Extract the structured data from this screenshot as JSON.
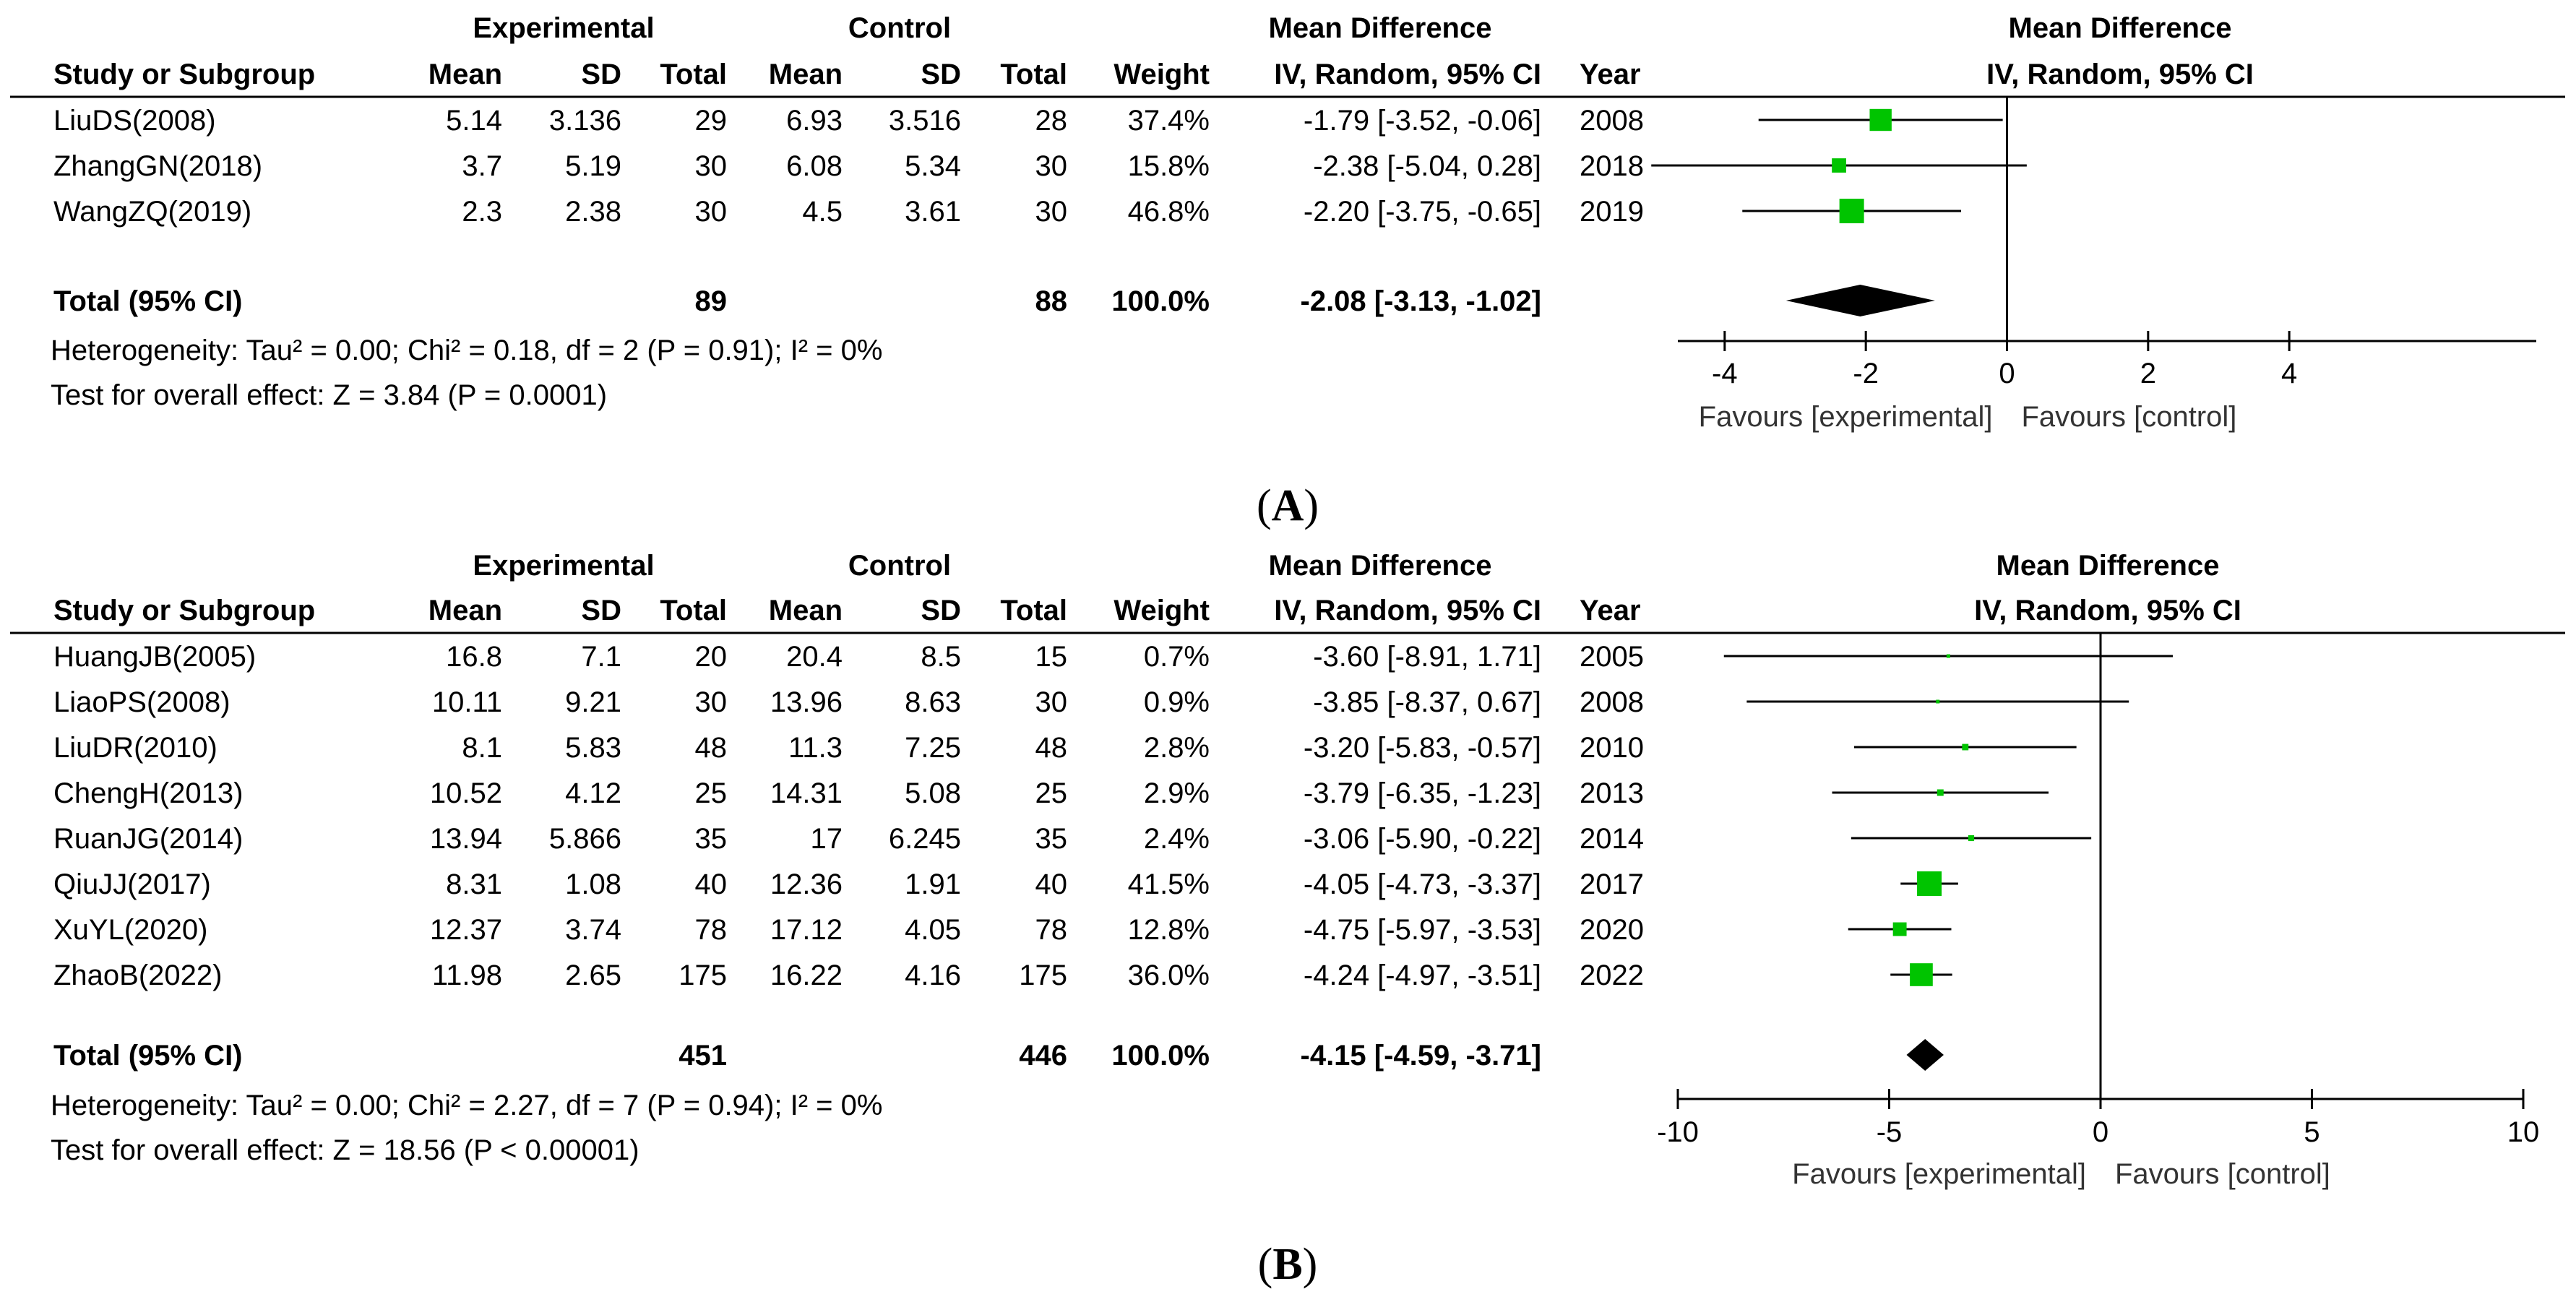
{
  "chart_data": [
    {
      "type": "forest",
      "panel_label": "A",
      "col_headers": {
        "experimental": "Experimental",
        "control": "Control",
        "md_group": "Mean Difference",
        "study": "Study or Subgroup",
        "mean_e": "Mean",
        "sd_e": "SD",
        "total_e": "Total",
        "mean_c": "Mean",
        "sd_c": "SD",
        "total_c": "Total",
        "weight": "Weight",
        "ci": "IV, Random, 95% CI",
        "year": "Year"
      },
      "plot_title": "Mean Difference",
      "plot_subtitle": "IV, Random, 95% CI",
      "studies": [
        {
          "name": "LiuDS(2008)",
          "mean_e": "5.14",
          "sd_e": "3.136",
          "n_e": "29",
          "mean_c": "6.93",
          "sd_c": "3.516",
          "n_c": "28",
          "weight": "37.4%",
          "ci_text": "-1.79 [-3.52, -0.06]",
          "year": "2008",
          "md": -1.79,
          "lo": -3.52,
          "hi": -0.06,
          "w": 37.4
        },
        {
          "name": "ZhangGN(2018)",
          "mean_e": "3.7",
          "sd_e": "5.19",
          "n_e": "30",
          "mean_c": "6.08",
          "sd_c": "5.34",
          "n_c": "30",
          "weight": "15.8%",
          "ci_text": "-2.38 [-5.04, 0.28]",
          "year": "2018",
          "md": -2.38,
          "lo": -5.04,
          "hi": 0.28,
          "w": 15.8
        },
        {
          "name": "WangZQ(2019)",
          "mean_e": "2.3",
          "sd_e": "2.38",
          "n_e": "30",
          "mean_c": "4.5",
          "sd_c": "3.61",
          "n_c": "30",
          "weight": "46.8%",
          "ci_text": "-2.20 [-3.75, -0.65]",
          "year": "2019",
          "md": -2.2,
          "lo": -3.75,
          "hi": -0.65,
          "w": 46.8
        }
      ],
      "total": {
        "label": "Total (95% CI)",
        "n_e": "89",
        "n_c": "88",
        "weight": "100.0%",
        "ci_text": "-2.08 [-3.13, -1.02]",
        "md": -2.08,
        "lo": -3.13,
        "hi": -1.02
      },
      "heterogeneity": "Heterogeneity: Tau² = 0.00; Chi² = 0.18, df = 2 (P = 0.91); I² = 0%",
      "overall_effect": "Test for overall effect: Z = 3.84 (P = 0.0001)",
      "xlim": [
        -4.5,
        7.5
      ],
      "xticks": [
        -4,
        -2,
        0,
        2,
        4
      ],
      "tick_labels": [
        "-4",
        "-2",
        "0",
        "2",
        "4"
      ],
      "favours_left": "Favours [experimental]",
      "favours_right": "Favours [control]"
    },
    {
      "type": "forest",
      "panel_label": "B",
      "col_headers": {
        "experimental": "Experimental",
        "control": "Control",
        "md_group": "Mean Difference",
        "study": "Study or Subgroup",
        "mean_e": "Mean",
        "sd_e": "SD",
        "total_e": "Total",
        "mean_c": "Mean",
        "sd_c": "SD",
        "total_c": "Total",
        "weight": "Weight",
        "ci": "IV, Random, 95% CI",
        "year": "Year"
      },
      "plot_title": "Mean Difference",
      "plot_subtitle": "IV, Random, 95% CI",
      "studies": [
        {
          "name": "HuangJB(2005)",
          "mean_e": "16.8",
          "sd_e": "7.1",
          "n_e": "20",
          "mean_c": "20.4",
          "sd_c": "8.5",
          "n_c": "15",
          "weight": "0.7%",
          "ci_text": "-3.60 [-8.91, 1.71]",
          "year": "2005",
          "md": -3.6,
          "lo": -8.91,
          "hi": 1.71,
          "w": 0.7
        },
        {
          "name": "LiaoPS(2008)",
          "mean_e": "10.11",
          "sd_e": "9.21",
          "n_e": "30",
          "mean_c": "13.96",
          "sd_c": "8.63",
          "n_c": "30",
          "weight": "0.9%",
          "ci_text": "-3.85 [-8.37, 0.67]",
          "year": "2008",
          "md": -3.85,
          "lo": -8.37,
          "hi": 0.67,
          "w": 0.9
        },
        {
          "name": "LiuDR(2010)",
          "mean_e": "8.1",
          "sd_e": "5.83",
          "n_e": "48",
          "mean_c": "11.3",
          "sd_c": "7.25",
          "n_c": "48",
          "weight": "2.8%",
          "ci_text": "-3.20 [-5.83, -0.57]",
          "year": "2010",
          "md": -3.2,
          "lo": -5.83,
          "hi": -0.57,
          "w": 2.8
        },
        {
          "name": "ChengH(2013)",
          "mean_e": "10.52",
          "sd_e": "4.12",
          "n_e": "25",
          "mean_c": "14.31",
          "sd_c": "5.08",
          "n_c": "25",
          "weight": "2.9%",
          "ci_text": "-3.79 [-6.35, -1.23]",
          "year": "2013",
          "md": -3.79,
          "lo": -6.35,
          "hi": -1.23,
          "w": 2.9
        },
        {
          "name": "RuanJG(2014)",
          "mean_e": "13.94",
          "sd_e": "5.866",
          "n_e": "35",
          "mean_c": "17",
          "sd_c": "6.245",
          "n_c": "35",
          "weight": "2.4%",
          "ci_text": "-3.06 [-5.90, -0.22]",
          "year": "2014",
          "md": -3.06,
          "lo": -5.9,
          "hi": -0.22,
          "w": 2.4
        },
        {
          "name": "QiuJJ(2017)",
          "mean_e": "8.31",
          "sd_e": "1.08",
          "n_e": "40",
          "mean_c": "12.36",
          "sd_c": "1.91",
          "n_c": "40",
          "weight": "41.5%",
          "ci_text": "-4.05 [-4.73, -3.37]",
          "year": "2017",
          "md": -4.05,
          "lo": -4.73,
          "hi": -3.37,
          "w": 41.5
        },
        {
          "name": "XuYL(2020)",
          "mean_e": "12.37",
          "sd_e": "3.74",
          "n_e": "78",
          "mean_c": "17.12",
          "sd_c": "4.05",
          "n_c": "78",
          "weight": "12.8%",
          "ci_text": "-4.75 [-5.97, -3.53]",
          "year": "2020",
          "md": -4.75,
          "lo": -5.97,
          "hi": -3.53,
          "w": 12.8
        },
        {
          "name": "ZhaoB(2022)",
          "mean_e": "11.98",
          "sd_e": "2.65",
          "n_e": "175",
          "mean_c": "16.22",
          "sd_c": "4.16",
          "n_c": "175",
          "weight": "36.0%",
          "ci_text": "-4.24 [-4.97, -3.51]",
          "year": "2022",
          "md": -4.24,
          "lo": -4.97,
          "hi": -3.51,
          "w": 36.0
        }
      ],
      "total": {
        "label": "Total (95% CI)",
        "n_e": "451",
        "n_c": "446",
        "weight": "100.0%",
        "ci_text": "-4.15 [-4.59, -3.71]",
        "md": -4.15,
        "lo": -4.59,
        "hi": -3.71
      },
      "heterogeneity": "Heterogeneity: Tau² = 0.00; Chi² = 2.27, df = 7 (P = 0.94); I² = 0%",
      "overall_effect": "Test for overall effect: Z = 18.56 (P < 0.00001)",
      "xlim": [
        -10,
        10
      ],
      "xticks": [
        -10,
        -5,
        0,
        5,
        10
      ],
      "tick_labels": [
        "-10",
        "-5",
        "0",
        "5",
        "10"
      ],
      "favours_left": "Favours [experimental]",
      "favours_right": "Favours [control]"
    }
  ],
  "colors": {
    "square": "#00c400",
    "diamond": "#000000",
    "line": "#000000",
    "text": "#000000",
    "favours": "#333333"
  }
}
